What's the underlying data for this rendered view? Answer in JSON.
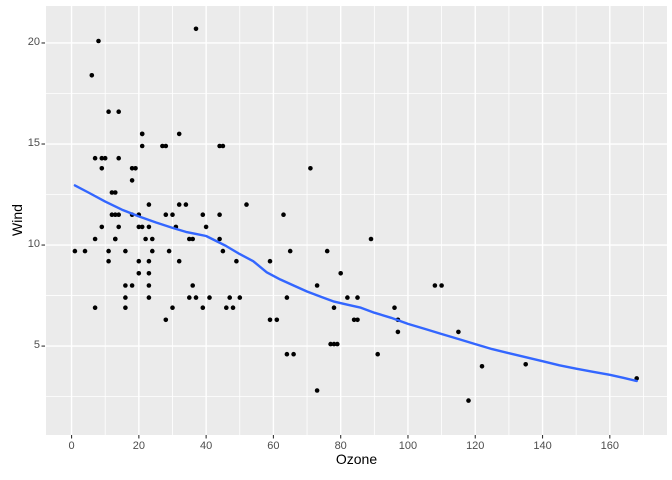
{
  "chart_data": {
    "type": "scatter",
    "title": "",
    "xlabel": "Ozone",
    "ylabel": "Wind",
    "legend_position": "none",
    "grid": true,
    "xlim": [
      -7.6,
      177.0
    ],
    "ylim": [
      0.6,
      21.83
    ],
    "x_major_ticks": [
      0,
      20,
      40,
      60,
      80,
      100,
      120,
      140,
      160
    ],
    "x_minor_ticks": [
      10,
      30,
      50,
      70,
      90,
      110,
      130,
      150,
      170
    ],
    "y_major_ticks": [
      5,
      10,
      15,
      20
    ],
    "y_minor_ticks": [
      2.5,
      7.5,
      12.5,
      17.5
    ],
    "colors": {
      "panel_bg": "#EBEBEB",
      "grid": "#FFFFFF",
      "point": "#000000",
      "smooth": "#3366FF",
      "axis_text": "#4D4D4D",
      "axis_title": "#000000",
      "tick": "#333333"
    },
    "point_style": {
      "radius": 2.3
    },
    "smooth_style": {
      "width": 2.4,
      "method": "loess"
    },
    "points": [
      [
        41,
        7.4
      ],
      [
        36,
        8
      ],
      [
        12,
        12.6
      ],
      [
        18,
        11.5
      ],
      [
        28,
        14.9
      ],
      [
        23,
        8.6
      ],
      [
        19,
        13.8
      ],
      [
        8,
        20.1
      ],
      [
        7,
        6.9
      ],
      [
        16,
        9.7
      ],
      [
        11,
        9.2
      ],
      [
        14,
        10.9
      ],
      [
        18,
        13.2
      ],
      [
        14,
        11.5
      ],
      [
        34,
        12
      ],
      [
        6,
        18.4
      ],
      [
        30,
        11.5
      ],
      [
        11,
        9.7
      ],
      [
        1,
        9.7
      ],
      [
        11,
        16.6
      ],
      [
        4,
        9.7
      ],
      [
        32,
        12
      ],
      [
        23,
        12
      ],
      [
        45,
        14.9
      ],
      [
        115,
        5.7
      ],
      [
        37,
        7.4
      ],
      [
        29,
        9.7
      ],
      [
        71,
        13.8
      ],
      [
        39,
        11.5
      ],
      [
        23,
        8
      ],
      [
        21,
        14.9
      ],
      [
        37,
        20.7
      ],
      [
        20,
        9.2
      ],
      [
        12,
        11.5
      ],
      [
        13,
        10.3
      ],
      [
        135,
        4.1
      ],
      [
        49,
        9.2
      ],
      [
        32,
        9.2
      ],
      [
        64,
        4.6
      ],
      [
        40,
        10.9
      ],
      [
        77,
        5.1
      ],
      [
        97,
        6.3
      ],
      [
        97,
        5.7
      ],
      [
        85,
        7.4
      ],
      [
        10,
        14.3
      ],
      [
        27,
        14.9
      ],
      [
        7,
        14.3
      ],
      [
        48,
        6.9
      ],
      [
        35,
        10.3
      ],
      [
        61,
        6.3
      ],
      [
        79,
        5.1
      ],
      [
        63,
        11.5
      ],
      [
        16,
        6.9
      ],
      [
        80,
        8.6
      ],
      [
        108,
        8
      ],
      [
        20,
        8.6
      ],
      [
        52,
        12
      ],
      [
        82,
        7.4
      ],
      [
        50,
        7.4
      ],
      [
        64,
        7.4
      ],
      [
        59,
        9.2
      ],
      [
        39,
        6.9
      ],
      [
        9,
        13.8
      ],
      [
        16,
        7.4
      ],
      [
        78,
        6.9
      ],
      [
        35,
        7.4
      ],
      [
        66,
        4.6
      ],
      [
        122,
        4
      ],
      [
        89,
        10.3
      ],
      [
        110,
        8
      ],
      [
        44,
        11.5
      ],
      [
        28,
        11.5
      ],
      [
        65,
        9.7
      ],
      [
        22,
        10.3
      ],
      [
        59,
        6.3
      ],
      [
        23,
        7.4
      ],
      [
        31,
        10.9
      ],
      [
        44,
        10.3
      ],
      [
        21,
        15.5
      ],
      [
        9,
        14.3
      ],
      [
        45,
        9.7
      ],
      [
        168,
        3.4
      ],
      [
        73,
        8
      ],
      [
        76,
        9.7
      ],
      [
        118,
        2.3
      ],
      [
        84,
        6.3
      ],
      [
        85,
        6.3
      ],
      [
        96,
        6.9
      ],
      [
        78,
        5.1
      ],
      [
        73,
        2.8
      ],
      [
        91,
        4.6
      ],
      [
        47,
        7.4
      ],
      [
        32,
        15.5
      ],
      [
        20,
        10.9
      ],
      [
        23,
        10.9
      ],
      [
        21,
        10.9
      ],
      [
        24,
        9.7
      ],
      [
        44,
        14.9
      ],
      [
        21,
        15.5
      ],
      [
        28,
        6.3
      ],
      [
        9,
        10.9
      ],
      [
        13,
        11.5
      ],
      [
        46,
        6.9
      ],
      [
        18,
        13.8
      ],
      [
        13,
        10.3
      ],
      [
        24,
        10.3
      ],
      [
        16,
        8
      ],
      [
        13,
        12.6
      ],
      [
        23,
        9.2
      ],
      [
        36,
        10.3
      ],
      [
        7,
        10.3
      ],
      [
        14,
        16.6
      ],
      [
        30,
        6.9
      ],
      [
        14,
        14.3
      ],
      [
        18,
        8
      ],
      [
        20,
        11.5
      ]
    ],
    "smooth": {
      "x": [
        1,
        5,
        10,
        15,
        20,
        25,
        30,
        34,
        37,
        40,
        43,
        46,
        50,
        54,
        58,
        62,
        66,
        70,
        74,
        78,
        82,
        86,
        90,
        95,
        100,
        105,
        110,
        115,
        120,
        125,
        130,
        135,
        140,
        145,
        150,
        155,
        160,
        164,
        168
      ],
      "y": [
        12.95,
        12.6,
        12.15,
        11.75,
        11.42,
        11.12,
        10.85,
        10.65,
        10.55,
        10.45,
        10.2,
        9.95,
        9.55,
        9.2,
        8.65,
        8.3,
        8.0,
        7.7,
        7.45,
        7.2,
        7.05,
        6.9,
        6.65,
        6.4,
        6.1,
        5.85,
        5.6,
        5.35,
        5.1,
        4.85,
        4.65,
        4.45,
        4.25,
        4.05,
        3.88,
        3.73,
        3.58,
        3.43,
        3.27
      ]
    }
  }
}
